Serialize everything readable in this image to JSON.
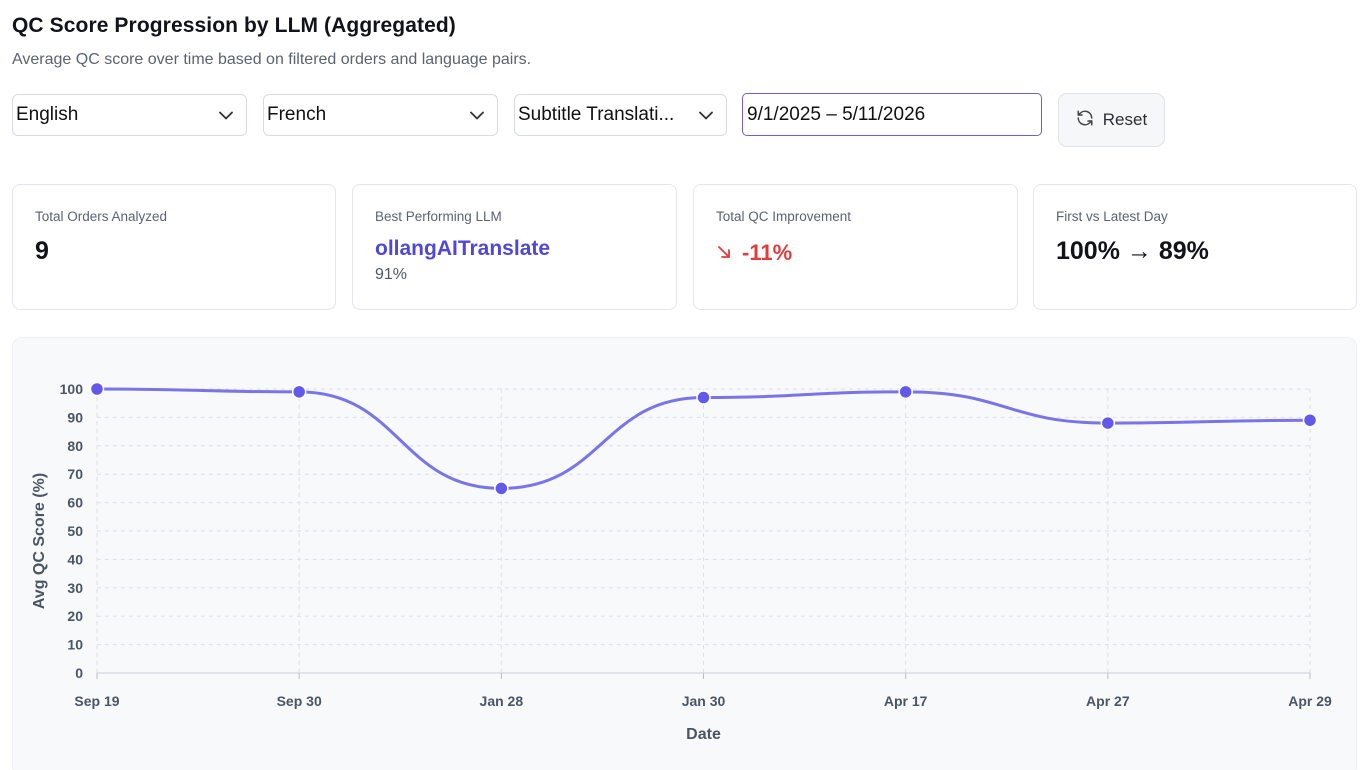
{
  "header": {
    "title": "QC Score Progression by LLM (Aggregated)",
    "subtitle": "Average QC score over time based on filtered orders and language pairs."
  },
  "filters": {
    "source_language": "English",
    "target_language": "French",
    "service": "Subtitle Translati...",
    "date_range": "9/1/2025 – 5/11/2026",
    "reset_label": "Reset"
  },
  "stats": {
    "total_orders_label": "Total Orders Analyzed",
    "total_orders_value": "9",
    "best_llm_label": "Best Performing LLM",
    "best_llm_name": "ollangAITranslate",
    "best_llm_score": "91%",
    "improvement_label": "Total QC Improvement",
    "improvement_value": "-11%",
    "first_latest_label": "First vs Latest Day",
    "first_latest_value": "100% → 89%"
  },
  "colors": {
    "accent": "#5047d6",
    "line": "#7b74e8",
    "point": "#6259ea",
    "negative": "#e23d3d"
  },
  "chart_data": {
    "type": "line",
    "categories": [
      "Sep 19",
      "Sep 30",
      "Jan 28",
      "Jan 30",
      "Apr 17",
      "Apr 27",
      "Apr 29"
    ],
    "series": [
      {
        "values": [
          100,
          99,
          65,
          97,
          99,
          88,
          89
        ]
      }
    ],
    "xlabel": "Date",
    "ylabel": "Avg QC Score (%)",
    "ylim": [
      0,
      100
    ],
    "yticks": [
      0,
      10,
      20,
      30,
      40,
      50,
      60,
      70,
      80,
      90,
      100
    ],
    "grid": true,
    "smooth": true
  }
}
